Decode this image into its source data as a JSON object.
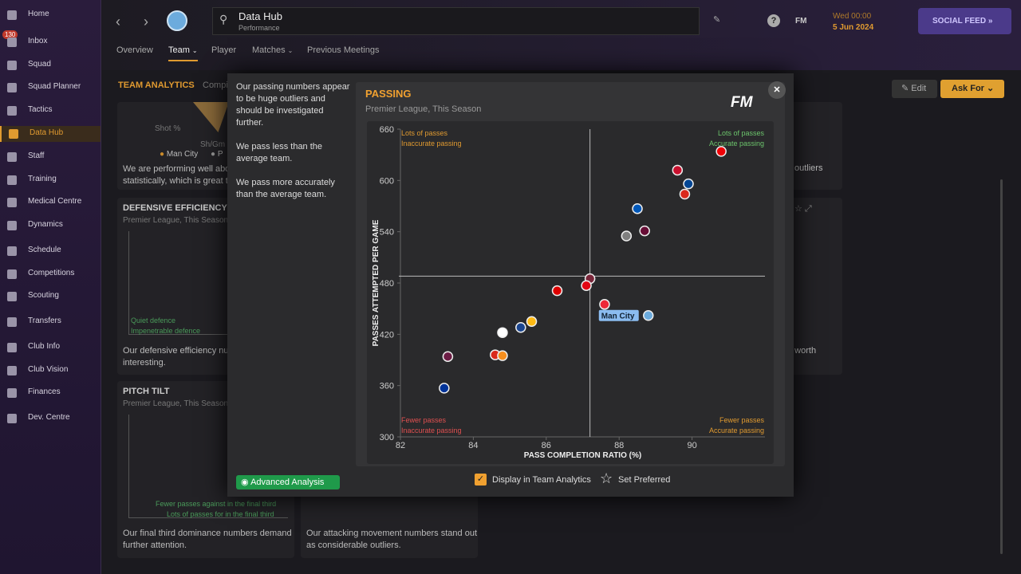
{
  "sidebar": {
    "badge": 130,
    "items": [
      "Home",
      "Inbox",
      "Squad",
      "Squad Planner",
      "Tactics",
      "Data Hub",
      "Staff",
      "Training",
      "Medical Centre",
      "Dynamics",
      "Schedule",
      "Competitions",
      "Scouting",
      "Transfers",
      "Club Info",
      "Club Vision",
      "Finances",
      "Dev. Centre"
    ],
    "active": 5
  },
  "header": {
    "title": "Data Hub",
    "subtitle": "Performance",
    "tabs": [
      "Overview",
      "Team",
      "Player",
      "Matches",
      "Previous Meetings"
    ],
    "active_tab": 1,
    "fm": "FM",
    "time": "Wed 00:00",
    "date": "5 Jun 2024",
    "social_feed": "SOCIAL FEED"
  },
  "background": {
    "section_title": "TEAM ANALYTICS",
    "section_tab": "Compi",
    "edit": "Edit",
    "ask_for": "Ask For",
    "card_top": {
      "axis_a": "Shot %",
      "axis_b": "Sh/Gm",
      "legend_a": "Man City",
      "legend_b": "P",
      "text_1": "We are performing well abov",
      "text_2": "statistically, which is great t"
    },
    "card_defence": {
      "title": "DEFENSIVE EFFICIENCY",
      "subtitle": "Premier League, This Season",
      "label_1": "Quiet defence",
      "label_2": "Impenetrable defence",
      "text_1": "Our defensive efficiency num",
      "text_2": "interesting."
    },
    "card_tilt": {
      "title": "PITCH TILT",
      "subtitle": "Premier League, This Season",
      "label_1": "Fewer passes against in the final third",
      "label_2": "Lots of passes for in the final third",
      "text_1": "Our final third dominance numbers demand",
      "text_2": "further attention."
    },
    "card_attack": {
      "text_1": "Our attacking movement numbers stand out",
      "text_2": "as considerable outliers."
    },
    "right_1": "outliers",
    "right_2": "e worth"
  },
  "modal": {
    "notes": [
      "Our passing numbers appear to be huge outliers and should be investigated further.",
      "We pass less than the average team.",
      "We pass more accurately than the average team."
    ],
    "advanced_analysis": "Advanced Analysis",
    "logo": "FM",
    "display_option": "Display in Team Analytics",
    "set_preferred": "Set Preferred"
  },
  "chart_data": {
    "type": "scatter",
    "title": "PASSING",
    "subtitle": "Premier League, This Season",
    "x_label": "PASS COMPLETION RATIO (%)",
    "y_label": "PASSES ATTEMPTED PER GAME",
    "xlim": [
      82,
      92
    ],
    "ylim": [
      300,
      660
    ],
    "xticks": [
      82,
      84,
      86,
      88,
      90
    ],
    "yticks": [
      300,
      360,
      420,
      480,
      540,
      600,
      660
    ],
    "x_average": 87.2,
    "y_average": 488,
    "quadrants": {
      "top_left": [
        "Lots of passes",
        "Inaccurate passing"
      ],
      "top_right": [
        "Lots of passes",
        "Accurate passing"
      ],
      "bottom_left": [
        "Fewer passes",
        "Inaccurate passing"
      ],
      "bottom_right": [
        "Fewer passes",
        "Accurate passing"
      ]
    },
    "x": [
      90.8,
      89.6,
      89.9,
      89.8,
      88.5,
      88.7,
      88.2,
      87.2,
      87.1,
      86.3,
      88.8,
      87.6,
      85.6,
      85.3,
      84.8,
      84.6,
      84.8,
      83.3,
      83.2
    ],
    "y": [
      634,
      612,
      596,
      584,
      567,
      541,
      535,
      485,
      477,
      471,
      442,
      455,
      435,
      428,
      422,
      396,
      395,
      394,
      357
    ],
    "labels": [
      null,
      null,
      null,
      null,
      null,
      null,
      null,
      null,
      null,
      null,
      "Man City",
      null,
      null,
      null,
      null,
      null,
      null,
      null,
      null
    ],
    "colors": [
      "#ef0107",
      "#c8102e",
      "#034694",
      "#da291c",
      "#0057b8",
      "#670e36",
      "#7f7f7f",
      "#7a263a",
      "#e30613",
      "#dd0000",
      "#6cabdd",
      "#ee2737",
      "#fdb913",
      "#1b458f",
      "#ffffff",
      "#da291c",
      "#f78f1e",
      "#6c1d45",
      "#003399"
    ]
  }
}
